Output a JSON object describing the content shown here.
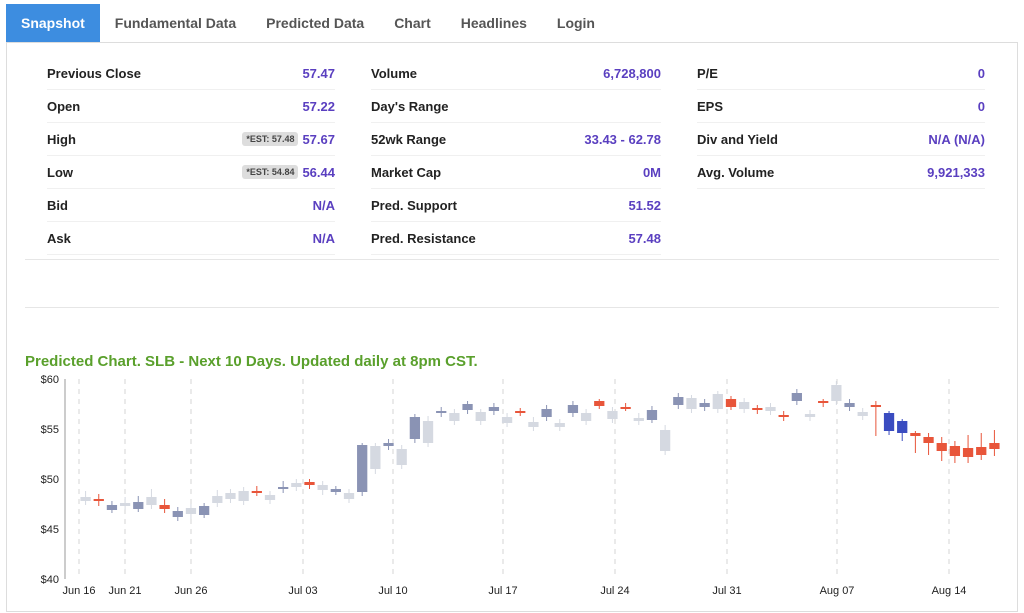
{
  "tabs": [
    "Snapshot",
    "Fundamental Data",
    "Predicted Data",
    "Chart",
    "Headlines",
    "Login"
  ],
  "col1": [
    {
      "label": "Previous Close",
      "value": "57.47"
    },
    {
      "label": "Open",
      "value": "57.22"
    },
    {
      "label": "High",
      "value": "57.67",
      "est": "*EST: 57.48"
    },
    {
      "label": "Low",
      "value": "56.44",
      "est": "*EST: 54.84"
    },
    {
      "label": "Bid",
      "value": "N/A"
    },
    {
      "label": "Ask",
      "value": "N/A"
    }
  ],
  "col2": [
    {
      "label": "Volume",
      "value": "6,728,800"
    },
    {
      "label": "Day's Range",
      "value": ""
    },
    {
      "label": "52wk Range",
      "value": "33.43 - 62.78"
    },
    {
      "label": "Market Cap",
      "value": "0M"
    },
    {
      "label": "Pred. Support",
      "value": "51.52"
    },
    {
      "label": "Pred. Resistance",
      "value": "57.48"
    }
  ],
  "col3": [
    {
      "label": "P/E",
      "value": "0"
    },
    {
      "label": "EPS",
      "value": "0"
    },
    {
      "label": "Div and Yield",
      "value": "N/A (N/A)"
    },
    {
      "label": "Avg. Volume",
      "value": "9,921,333"
    }
  ],
  "predicted_title": "Predicted Chart. SLB - Next 10 Days. Updated daily at 8pm CST.",
  "chart_data": {
    "type": "candlestick",
    "yticks": [
      "$60",
      "$55",
      "$50",
      "$45",
      "$40"
    ],
    "ylim": [
      40,
      60
    ],
    "xticks": [
      "Jun 16",
      "Jun 21",
      "Jun 26",
      "Jul 03",
      "Jul 10",
      "Jul 17",
      "Jul 24",
      "Jul 31",
      "Aug 07",
      "Aug 14"
    ],
    "colors": {
      "up": "#8a93b4",
      "down": "#e8553a",
      "ghost": "#d5d9e1",
      "pred_up": "#3a4cc0",
      "pred_down": "#e8553a"
    },
    "candles": [
      {
        "o": 47.8,
        "c": 48.2,
        "h": 48.8,
        "l": 47.4,
        "kind": "ghost"
      },
      {
        "o": 48.0,
        "c": 47.8,
        "h": 48.5,
        "l": 47.3,
        "kind": "down"
      },
      {
        "o": 46.9,
        "c": 47.4,
        "h": 47.8,
        "l": 46.6,
        "kind": "up"
      },
      {
        "o": 47.6,
        "c": 47.3,
        "h": 48.2,
        "l": 46.9,
        "kind": "ghost"
      },
      {
        "o": 47.0,
        "c": 47.7,
        "h": 48.3,
        "l": 46.7,
        "kind": "up"
      },
      {
        "o": 48.2,
        "c": 47.4,
        "h": 49.0,
        "l": 47.0,
        "kind": "ghost"
      },
      {
        "o": 47.4,
        "c": 47.0,
        "h": 48.0,
        "l": 46.6,
        "kind": "down"
      },
      {
        "o": 46.2,
        "c": 46.8,
        "h": 47.2,
        "l": 45.8,
        "kind": "up"
      },
      {
        "o": 46.5,
        "c": 47.1,
        "h": 47.5,
        "l": 46.0,
        "kind": "ghost"
      },
      {
        "o": 46.4,
        "c": 47.3,
        "h": 47.6,
        "l": 46.1,
        "kind": "up"
      },
      {
        "o": 47.6,
        "c": 48.3,
        "h": 48.9,
        "l": 47.2,
        "kind": "ghost"
      },
      {
        "o": 48.0,
        "c": 48.6,
        "h": 49.0,
        "l": 47.6,
        "kind": "ghost"
      },
      {
        "o": 47.8,
        "c": 48.8,
        "h": 49.2,
        "l": 47.4,
        "kind": "ghost"
      },
      {
        "o": 48.8,
        "c": 48.7,
        "h": 49.3,
        "l": 48.3,
        "kind": "down"
      },
      {
        "o": 47.9,
        "c": 48.4,
        "h": 48.8,
        "l": 47.5,
        "kind": "ghost"
      },
      {
        "o": 49.0,
        "c": 49.2,
        "h": 49.8,
        "l": 48.6,
        "kind": "up"
      },
      {
        "o": 49.2,
        "c": 49.6,
        "h": 50.0,
        "l": 48.8,
        "kind": "ghost"
      },
      {
        "o": 49.7,
        "c": 49.4,
        "h": 50.0,
        "l": 49.0,
        "kind": "down"
      },
      {
        "o": 48.9,
        "c": 49.4,
        "h": 49.8,
        "l": 48.4,
        "kind": "ghost"
      },
      {
        "o": 49.0,
        "c": 48.7,
        "h": 49.3,
        "l": 48.4,
        "kind": "up"
      },
      {
        "o": 48.0,
        "c": 48.6,
        "h": 49.0,
        "l": 47.6,
        "kind": "ghost"
      },
      {
        "o": 48.7,
        "c": 53.4,
        "h": 53.6,
        "l": 48.3,
        "kind": "up"
      },
      {
        "o": 51.0,
        "c": 53.3,
        "h": 53.6,
        "l": 50.5,
        "kind": "ghost"
      },
      {
        "o": 53.3,
        "c": 53.6,
        "h": 54.0,
        "l": 52.9,
        "kind": "up"
      },
      {
        "o": 51.4,
        "c": 53.0,
        "h": 53.4,
        "l": 51.0,
        "kind": "ghost"
      },
      {
        "o": 54.0,
        "c": 56.2,
        "h": 56.5,
        "l": 53.6,
        "kind": "up"
      },
      {
        "o": 53.6,
        "c": 55.8,
        "h": 56.3,
        "l": 53.2,
        "kind": "ghost"
      },
      {
        "o": 56.6,
        "c": 56.8,
        "h": 57.2,
        "l": 56.2,
        "kind": "up"
      },
      {
        "o": 55.8,
        "c": 56.6,
        "h": 57.0,
        "l": 55.4,
        "kind": "ghost"
      },
      {
        "o": 56.9,
        "c": 57.5,
        "h": 57.8,
        "l": 56.5,
        "kind": "up"
      },
      {
        "o": 55.8,
        "c": 56.7,
        "h": 57.0,
        "l": 55.4,
        "kind": "ghost"
      },
      {
        "o": 56.8,
        "c": 57.2,
        "h": 57.6,
        "l": 56.4,
        "kind": "up"
      },
      {
        "o": 55.6,
        "c": 56.2,
        "h": 56.6,
        "l": 55.2,
        "kind": "ghost"
      },
      {
        "o": 56.8,
        "c": 56.6,
        "h": 57.1,
        "l": 56.3,
        "kind": "down"
      },
      {
        "o": 55.2,
        "c": 55.7,
        "h": 56.2,
        "l": 54.8,
        "kind": "ghost"
      },
      {
        "o": 56.2,
        "c": 57.0,
        "h": 57.4,
        "l": 55.8,
        "kind": "up"
      },
      {
        "o": 55.2,
        "c": 55.6,
        "h": 56.0,
        "l": 54.8,
        "kind": "ghost"
      },
      {
        "o": 56.6,
        "c": 57.4,
        "h": 57.8,
        "l": 56.2,
        "kind": "up"
      },
      {
        "o": 55.8,
        "c": 56.6,
        "h": 57.0,
        "l": 55.4,
        "kind": "ghost"
      },
      {
        "o": 57.8,
        "c": 57.3,
        "h": 58.0,
        "l": 57.0,
        "kind": "down"
      },
      {
        "o": 56.0,
        "c": 56.8,
        "h": 57.2,
        "l": 55.6,
        "kind": "ghost"
      },
      {
        "o": 57.2,
        "c": 57.1,
        "h": 57.6,
        "l": 56.8,
        "kind": "down"
      },
      {
        "o": 55.8,
        "c": 56.1,
        "h": 56.6,
        "l": 55.4,
        "kind": "ghost"
      },
      {
        "o": 56.9,
        "c": 55.9,
        "h": 57.3,
        "l": 55.6,
        "kind": "up"
      },
      {
        "o": 52.8,
        "c": 54.9,
        "h": 55.4,
        "l": 52.4,
        "kind": "ghost"
      },
      {
        "o": 57.4,
        "c": 58.2,
        "h": 58.6,
        "l": 57.0,
        "kind": "up"
      },
      {
        "o": 57.0,
        "c": 58.1,
        "h": 58.4,
        "l": 56.6,
        "kind": "ghost"
      },
      {
        "o": 57.2,
        "c": 57.6,
        "h": 58.0,
        "l": 56.8,
        "kind": "up"
      },
      {
        "o": 57.0,
        "c": 58.5,
        "h": 58.8,
        "l": 56.6,
        "kind": "ghost"
      },
      {
        "o": 58.0,
        "c": 57.2,
        "h": 58.3,
        "l": 56.9,
        "kind": "down"
      },
      {
        "o": 57.0,
        "c": 57.7,
        "h": 58.1,
        "l": 56.6,
        "kind": "ghost"
      },
      {
        "o": 57.1,
        "c": 56.9,
        "h": 57.4,
        "l": 56.5,
        "kind": "down"
      },
      {
        "o": 56.8,
        "c": 57.2,
        "h": 57.6,
        "l": 56.4,
        "kind": "ghost"
      },
      {
        "o": 56.4,
        "c": 56.2,
        "h": 56.8,
        "l": 55.8,
        "kind": "down"
      },
      {
        "o": 57.8,
        "c": 58.6,
        "h": 59.0,
        "l": 57.4,
        "kind": "up"
      },
      {
        "o": 56.2,
        "c": 56.5,
        "h": 56.9,
        "l": 55.8,
        "kind": "ghost"
      },
      {
        "o": 57.8,
        "c": 57.6,
        "h": 58.0,
        "l": 57.2,
        "kind": "down"
      },
      {
        "o": 57.8,
        "c": 59.4,
        "h": 59.8,
        "l": 57.4,
        "kind": "ghost"
      },
      {
        "o": 57.2,
        "c": 57.6,
        "h": 58.0,
        "l": 56.8,
        "kind": "up"
      },
      {
        "o": 56.3,
        "c": 56.7,
        "h": 57.1,
        "l": 55.9,
        "kind": "ghost"
      },
      {
        "o": 57.4,
        "c": 57.3,
        "h": 57.8,
        "l": 54.3,
        "kind": "down"
      },
      {
        "o": 56.6,
        "c": 54.8,
        "h": 56.8,
        "l": 54.4,
        "kind": "pred_up"
      },
      {
        "o": 55.8,
        "c": 54.6,
        "h": 56.0,
        "l": 53.8,
        "kind": "pred_up"
      },
      {
        "o": 54.6,
        "c": 54.3,
        "h": 54.8,
        "l": 52.6,
        "kind": "pred_down"
      },
      {
        "o": 54.2,
        "c": 53.6,
        "h": 54.6,
        "l": 52.4,
        "kind": "pred_down"
      },
      {
        "o": 53.6,
        "c": 52.8,
        "h": 54.2,
        "l": 51.8,
        "kind": "pred_down"
      },
      {
        "o": 53.3,
        "c": 52.3,
        "h": 53.8,
        "l": 51.6,
        "kind": "pred_down"
      },
      {
        "o": 53.1,
        "c": 52.2,
        "h": 54.4,
        "l": 51.6,
        "kind": "pred_down"
      },
      {
        "o": 53.2,
        "c": 52.4,
        "h": 54.6,
        "l": 51.9,
        "kind": "pred_down"
      },
      {
        "o": 53.6,
        "c": 53.0,
        "h": 54.9,
        "l": 52.3,
        "kind": "pred_down"
      }
    ]
  }
}
